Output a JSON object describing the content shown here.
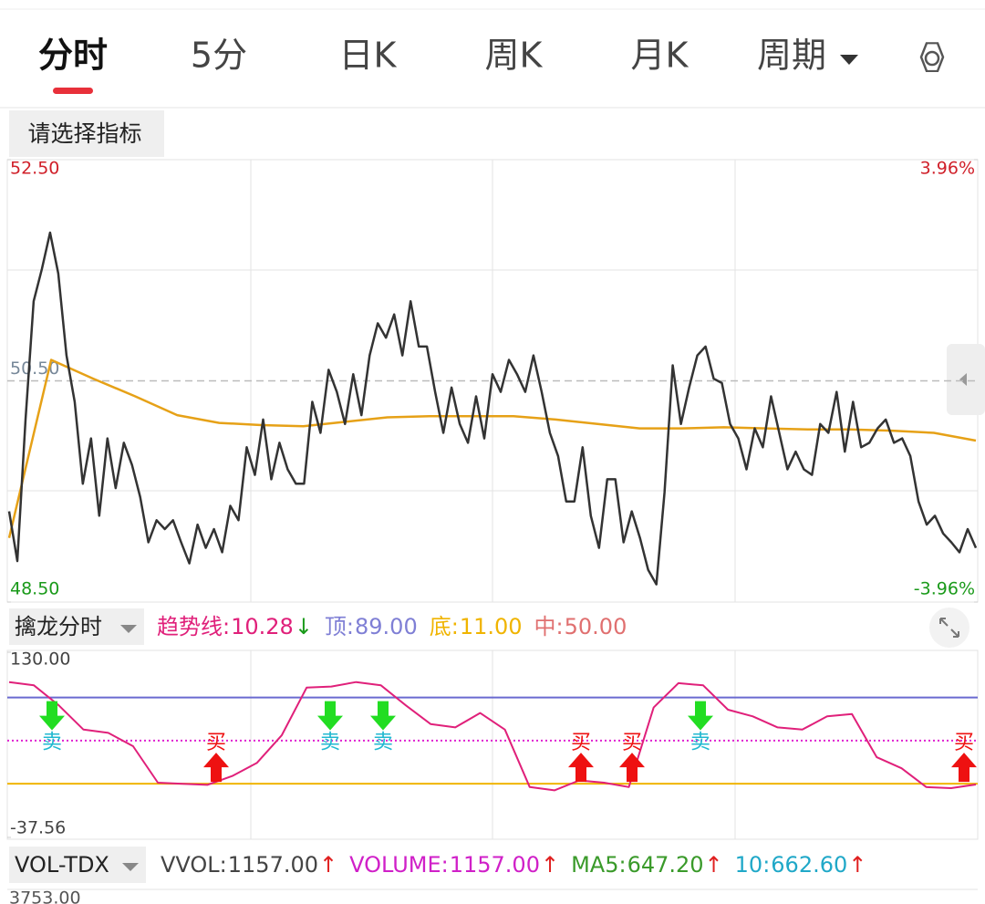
{
  "tabs": [
    "分时",
    "5分",
    "日K",
    "周K",
    "月K",
    "周期"
  ],
  "indicator_button": "请选择指标",
  "price_chart": {
    "type": "line",
    "ylim": [
      48.5,
      52.5
    ],
    "yticks": [
      {
        "value": 52.5,
        "label": "52.50"
      },
      {
        "value": 50.5,
        "label": "50.50"
      },
      {
        "value": 48.5,
        "label": "48.50"
      }
    ],
    "y2lim": [
      -3.96,
      3.96
    ],
    "y2ticks": [
      {
        "value": 3.96,
        "label": "3.96%"
      },
      {
        "value": -3.96,
        "label": "-3.96%"
      }
    ],
    "series": [
      {
        "color": "#333333",
        "values": [
          49.32,
          48.87,
          50.15,
          51.22,
          51.51,
          51.84,
          51.47,
          50.73,
          50.31,
          49.57,
          49.98,
          49.28,
          49.98,
          49.53,
          49.94,
          49.74,
          49.45,
          49.04,
          49.24,
          49.16,
          49.24,
          49.04,
          48.85,
          49.2,
          48.99,
          49.16,
          48.95,
          49.37,
          49.24,
          49.9,
          49.65,
          50.15,
          49.61,
          49.94,
          49.7,
          49.57,
          49.57,
          50.31,
          50.03,
          50.6,
          50.4,
          50.11,
          50.56,
          50.19,
          50.73,
          51.02,
          50.89,
          51.1,
          50.73,
          51.22,
          50.81,
          50.81,
          50.4,
          50.03,
          50.44,
          50.11,
          49.94,
          50.36,
          49.98,
          50.56,
          50.4,
          50.69,
          50.56,
          50.4,
          50.73,
          50.4,
          50.03,
          49.82,
          49.41,
          49.41,
          49.9,
          49.28,
          48.99,
          49.61,
          49.61,
          49.04,
          49.32,
          49.08,
          48.79,
          48.66,
          49.49,
          50.64,
          50.11,
          50.44,
          50.73,
          50.81,
          50.52,
          50.48,
          50.11,
          49.98,
          49.7,
          50.07,
          49.9,
          50.36,
          50.03,
          49.7,
          49.86,
          49.7,
          49.65,
          50.11,
          50.03,
          50.4,
          49.86,
          50.31,
          49.9,
          49.94,
          50.07,
          50.15,
          49.94,
          49.98,
          49.82,
          49.41,
          49.2,
          49.28,
          49.12,
          49.04,
          48.95,
          49.16,
          48.99
        ]
      },
      {
        "color": "#e6a117",
        "values": [
          49.08,
          50.69,
          50.52,
          50.36,
          50.19,
          50.12,
          50.1,
          50.09,
          50.13,
          50.17,
          50.18,
          50.18,
          50.18,
          50.15,
          50.11,
          50.07,
          50.07,
          50.08,
          50.07,
          50.06,
          50.06,
          50.05,
          50.03,
          49.96
        ]
      }
    ]
  },
  "indicator": {
    "type": "line",
    "name": "擒龙分时",
    "ylim": [
      -37.56,
      130
    ],
    "yticks": [
      {
        "value": 130,
        "label": "130.00"
      },
      {
        "value": -37.56,
        "label": "-37.56"
      }
    ],
    "trend": {
      "name": "趋势线:",
      "label": "10.28",
      "arrow": "↓",
      "color": "#e0207a",
      "values": [
        103,
        100,
        82,
        60,
        57,
        45,
        12,
        11,
        10,
        18,
        30,
        55,
        98,
        99,
        103,
        100,
        82,
        65,
        62,
        75,
        60,
        8,
        5,
        14,
        12,
        8,
        80,
        102,
        100,
        78,
        72,
        62,
        60,
        72,
        74,
        35,
        25,
        8,
        7,
        10.28
      ]
    },
    "levels": [
      {
        "name": "顶:",
        "value": 89,
        "label": "89.00",
        "color": "#7f7fd5"
      },
      {
        "name": "底:",
        "value": 11,
        "label": "11.00",
        "color": "#f0b400"
      },
      {
        "name": "中:",
        "value": 50,
        "label": "50.00",
        "color": "#e07070"
      }
    ],
    "sell_labels": [
      "卖",
      "卖",
      "卖",
      "卖"
    ],
    "buy_labels": [
      "买",
      "买",
      "买",
      "买"
    ]
  },
  "volume": {
    "name": "VOL-TDX",
    "items": [
      {
        "name": "VVOL:",
        "label": "1157.00",
        "arrow": "↑",
        "color": "#444444"
      },
      {
        "name": "VOLUME:",
        "label": "1157.00",
        "arrow": "↑",
        "color": "#d020c8"
      },
      {
        "name": "MA5:",
        "label": "647.20",
        "arrow": "↑",
        "color": "#3a9a2a"
      },
      {
        "name": "10:",
        "label": "662.60",
        "arrow": "↑",
        "color": "#20a8c8"
      }
    ],
    "top_label": "3753.00"
  }
}
